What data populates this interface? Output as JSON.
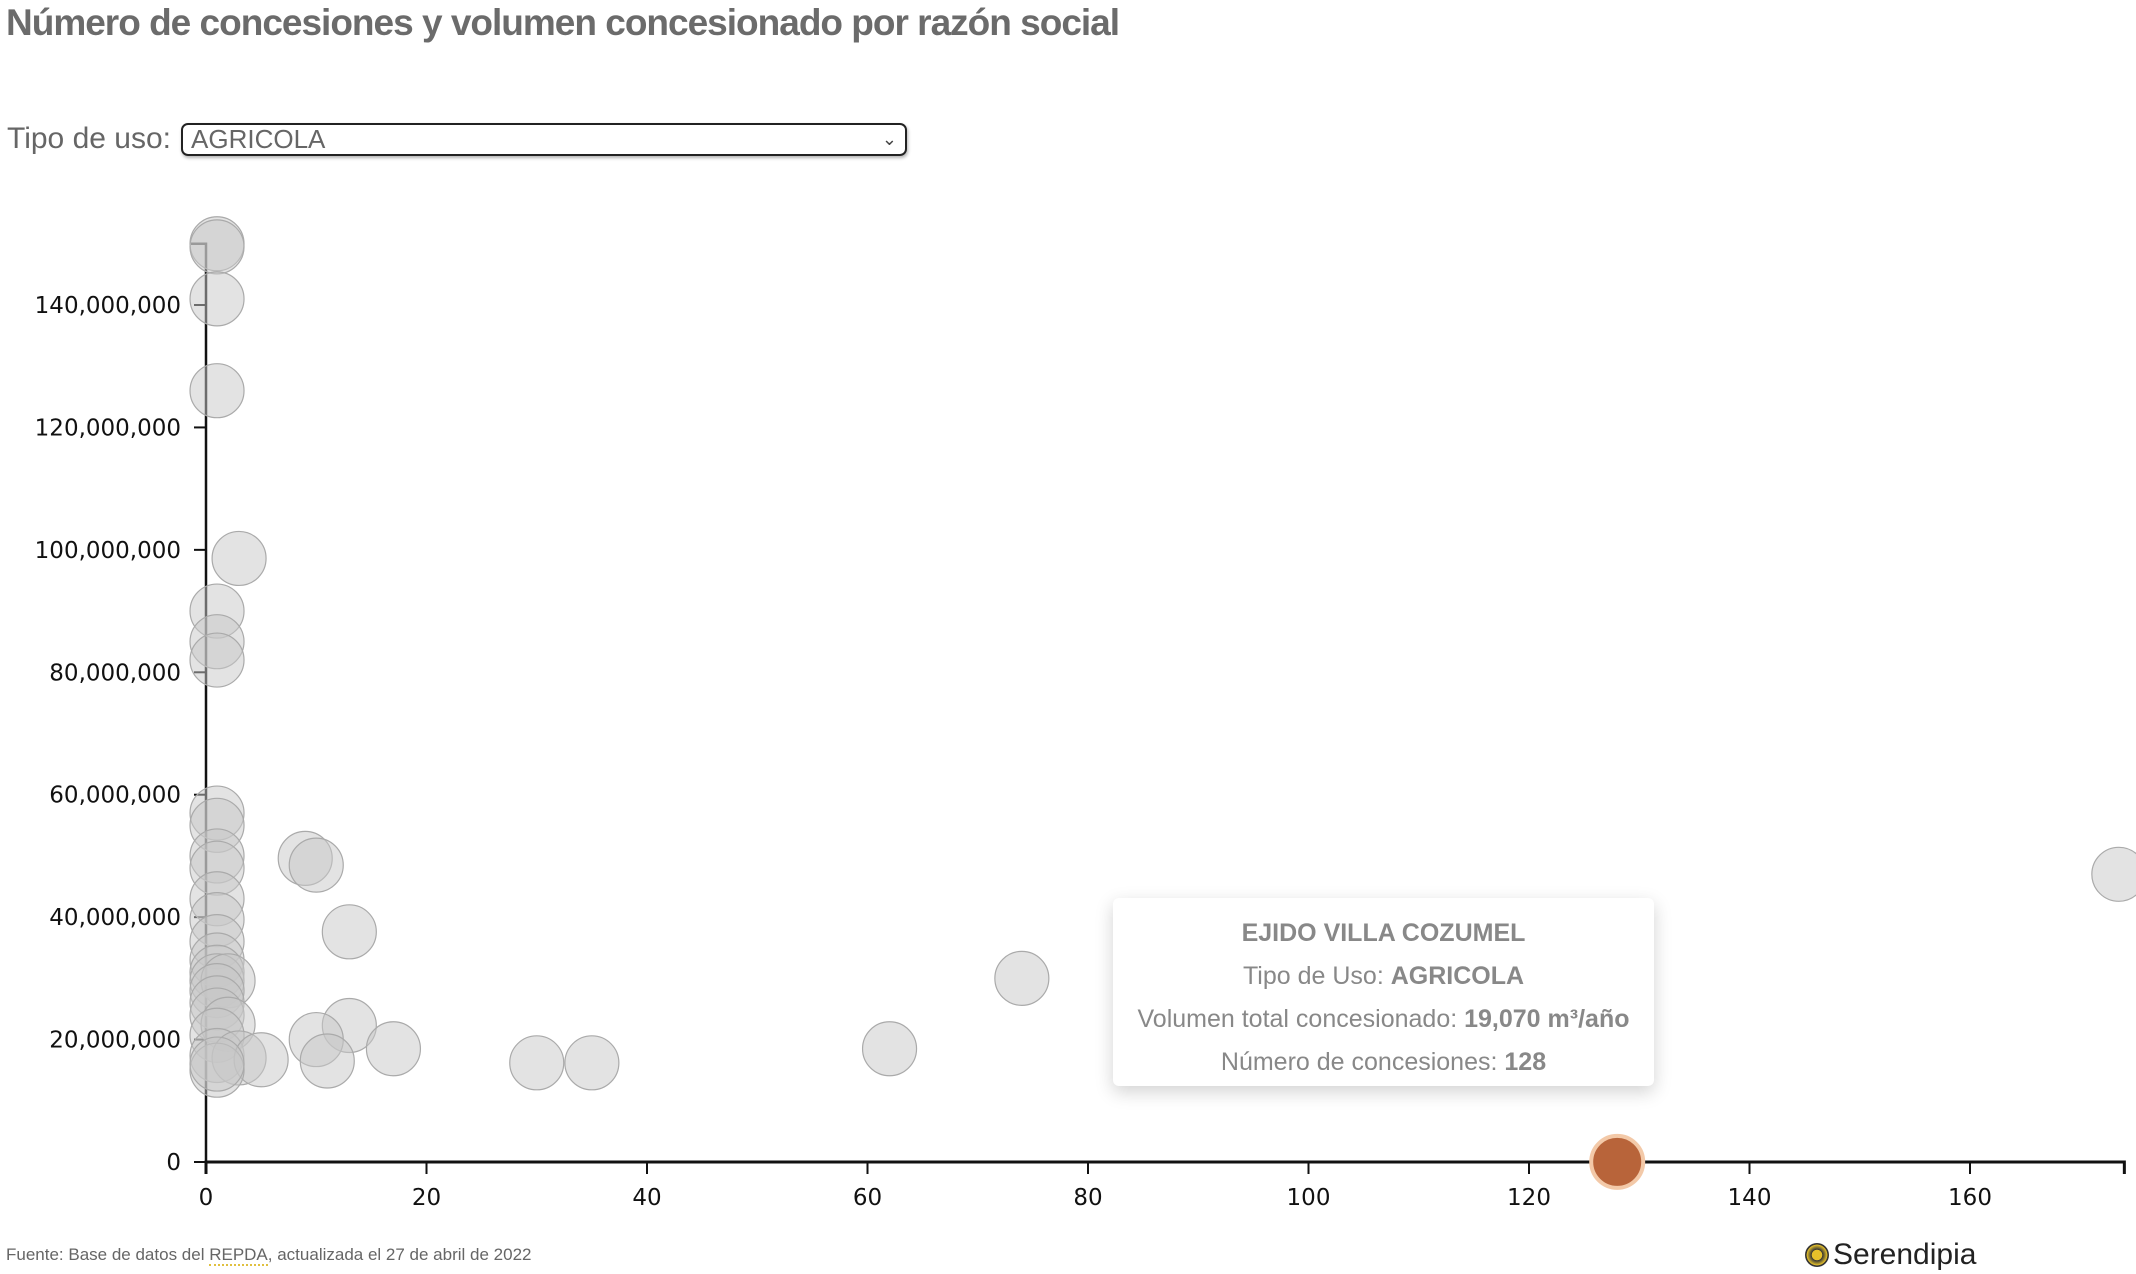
{
  "title": "Número de concesiones y volumen concesionado por razón social",
  "filter": {
    "label": "Tipo de uso:",
    "selected": "AGRICOLA"
  },
  "tooltip": {
    "name": "EJIDO VILLA COZUMEL",
    "tipo_label": "Tipo de Uso:",
    "tipo_value": "AGRICOLA",
    "volumen_label": "Volumen total concesionado:",
    "volumen_value": "19,070 m³/año",
    "num_label": "Número de concesiones:",
    "num_value": "128"
  },
  "footer": {
    "prefix": "Fuente: Base de datos del ",
    "source": "REPDA",
    "suffix": ", actualizada el 27 de abril de 2022"
  },
  "logo": "Serendipia",
  "colors": {
    "point": "#c8c8c8",
    "point_stroke": "#aaaaaa",
    "highlight": "#b8643a",
    "highlight_stroke": "#f3c9a8"
  },
  "chart_data": {
    "type": "scatter",
    "xlabel": "",
    "ylabel": "",
    "xlim": [
      0,
      174
    ],
    "ylim": [
      0,
      150000000
    ],
    "xticks": [
      0,
      20,
      40,
      60,
      80,
      100,
      120,
      140,
      160
    ],
    "yticks": [
      0,
      20000000,
      40000000,
      60000000,
      80000000,
      100000000,
      120000000,
      140000000
    ],
    "ytick_labels": [
      "0",
      "20,000,000",
      "40,000,000",
      "60,000,000",
      "80,000,000",
      "100,000,000",
      "120,000,000",
      "140,000,000"
    ],
    "highlighted": {
      "x": 128,
      "y": 19070,
      "name": "EJIDO VILLA COZUMEL"
    },
    "points": [
      [
        1,
        150000000
      ],
      [
        1,
        149500000
      ],
      [
        1,
        141000000
      ],
      [
        1,
        126000000
      ],
      [
        3,
        98600000
      ],
      [
        1,
        90000000
      ],
      [
        1,
        85000000
      ],
      [
        1,
        82000000
      ],
      [
        1,
        57000000
      ],
      [
        1,
        55000000
      ],
      [
        1,
        50000000
      ],
      [
        1,
        48000000
      ],
      [
        9,
        49600000
      ],
      [
        10,
        48500000
      ],
      [
        1,
        43000000
      ],
      [
        1,
        39600000
      ],
      [
        1,
        36000000
      ],
      [
        13,
        37600000
      ],
      [
        1,
        33000000
      ],
      [
        1,
        31000000
      ],
      [
        1,
        29600000
      ],
      [
        2,
        29600000
      ],
      [
        74,
        30000000
      ],
      [
        1,
        28000000
      ],
      [
        1,
        26000000
      ],
      [
        1,
        24000000
      ],
      [
        2,
        22500000
      ],
      [
        13,
        22300000
      ],
      [
        10,
        20000000
      ],
      [
        1,
        20700000
      ],
      [
        17,
        18500000
      ],
      [
        62,
        18500000
      ],
      [
        1,
        17400000
      ],
      [
        3,
        17000000
      ],
      [
        5,
        16700000
      ],
      [
        11,
        16500000
      ],
      [
        30,
        16200000
      ],
      [
        35,
        16200000
      ],
      [
        1,
        15000000
      ],
      [
        1,
        16000000
      ],
      [
        173.5,
        47000000
      ],
      [
        128,
        19070
      ]
    ]
  }
}
